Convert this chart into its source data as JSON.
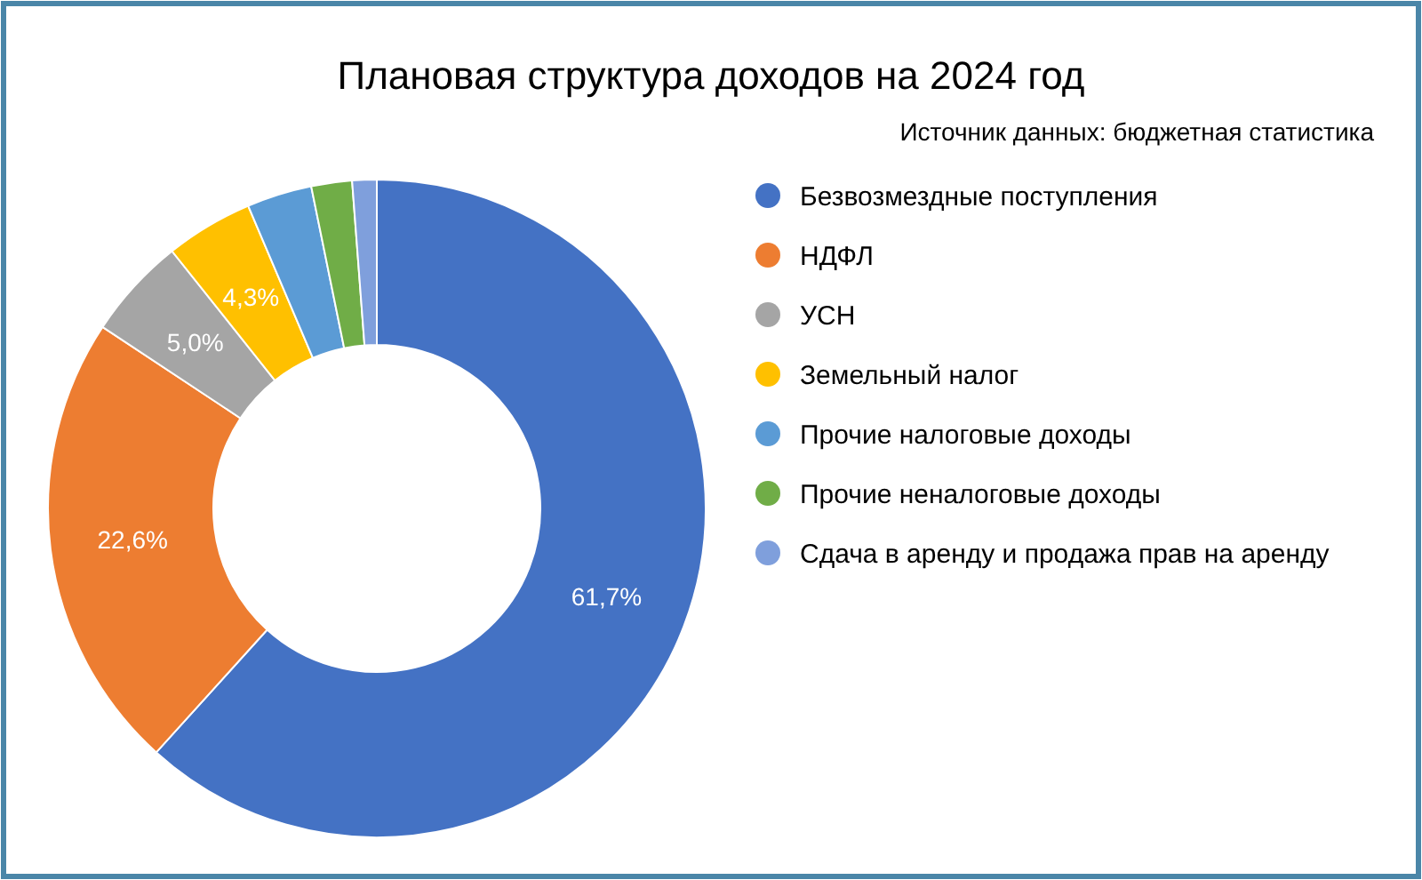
{
  "chart_data": {
    "type": "donut",
    "title": "Плановая структура доходов на 2024 год",
    "annotations": [
      "Источник данных: бюджетная статистика"
    ],
    "categories": [
      "Безвозмездные поступления",
      "НДФЛ",
      "УСН",
      "Земельный налог",
      "Прочие налоговые доходы",
      "Прочие неналоговые доходы",
      "Сдача в аренду и продажа прав на аренду"
    ],
    "values": [
      61.7,
      22.6,
      5.0,
      4.3,
      3.2,
      2.0,
      1.2
    ],
    "colors": [
      "#4472c4",
      "#ed7d31",
      "#a5a5a5",
      "#ffc000",
      "#5b9bd5",
      "#70ad47",
      "#7f9fdc"
    ],
    "value_labels": [
      "61,7%",
      "22,6%",
      "5,0%",
      "4,3%",
      null,
      null,
      null
    ],
    "legend": "right"
  }
}
